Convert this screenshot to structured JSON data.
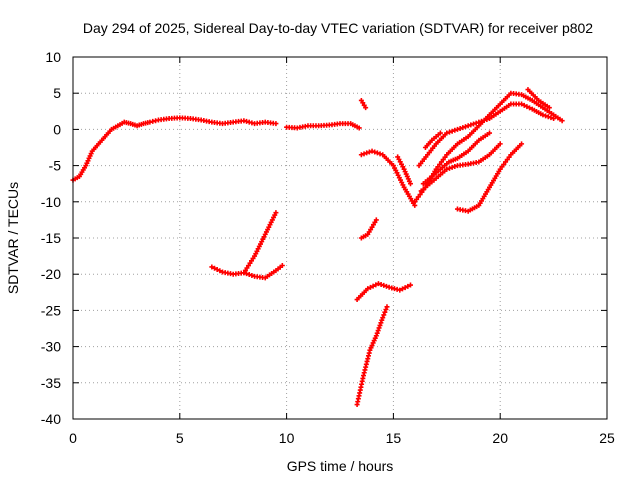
{
  "chart_data": {
    "type": "scatter",
    "title": "Day 294 of 2025, Sidereal Day-to-day VTEC variation (SDTVAR) for receiver p802",
    "xlabel": "GPS time / hours",
    "ylabel": "SDTVAR / TECUs",
    "xlim": [
      0,
      25
    ],
    "ylim": [
      -40,
      10
    ],
    "x_ticks": [
      0,
      5,
      10,
      15,
      20,
      25
    ],
    "y_ticks": [
      -40,
      -35,
      -30,
      -25,
      -20,
      -15,
      -10,
      -5,
      0,
      5,
      10
    ],
    "grid": true,
    "legend": "none",
    "point_color": "#ff0000",
    "series": [
      {
        "segments": [
          [
            [
              0.0,
              -7.0
            ],
            [
              0.3,
              -6.5
            ],
            [
              0.6,
              -5.0
            ],
            [
              0.9,
              -3.0
            ],
            [
              1.2,
              -2.0
            ],
            [
              1.5,
              -1.0
            ],
            [
              1.8,
              0.0
            ],
            [
              2.1,
              0.5
            ],
            [
              2.4,
              1.0
            ],
            [
              2.7,
              0.8
            ],
            [
              3.0,
              0.5
            ],
            [
              3.3,
              0.8
            ],
            [
              3.6,
              1.0
            ],
            [
              4.0,
              1.3
            ],
            [
              4.5,
              1.5
            ],
            [
              5.0,
              1.6
            ],
            [
              5.5,
              1.5
            ],
            [
              6.0,
              1.3
            ],
            [
              6.5,
              1.0
            ],
            [
              7.0,
              0.8
            ],
            [
              7.5,
              1.0
            ],
            [
              8.0,
              1.2
            ],
            [
              8.5,
              0.8
            ],
            [
              9.0,
              1.0
            ],
            [
              9.5,
              0.8
            ]
          ],
          [
            [
              10.0,
              0.3
            ],
            [
              10.5,
              0.2
            ],
            [
              11.0,
              0.5
            ],
            [
              11.5,
              0.5
            ],
            [
              12.0,
              0.6
            ],
            [
              12.5,
              0.8
            ],
            [
              13.0,
              0.8
            ],
            [
              13.4,
              0.2
            ]
          ],
          [
            [
              6.5,
              -19.0
            ],
            [
              7.0,
              -19.7
            ],
            [
              7.5,
              -20.0
            ],
            [
              8.0,
              -19.8
            ],
            [
              8.5,
              -20.3
            ],
            [
              9.0,
              -20.5
            ],
            [
              9.5,
              -19.5
            ],
            [
              9.8,
              -18.8
            ]
          ],
          [
            [
              8.0,
              -19.8
            ],
            [
              8.5,
              -17.5
            ],
            [
              9.0,
              -14.5
            ],
            [
              9.5,
              -11.5
            ]
          ],
          [
            [
              13.5,
              4.0
            ],
            [
              13.7,
              3.0
            ]
          ],
          [
            [
              13.5,
              -3.5
            ],
            [
              14.0,
              -3.0
            ],
            [
              14.5,
              -3.5
            ],
            [
              15.0,
              -5.0
            ],
            [
              15.5,
              -8.0
            ],
            [
              16.0,
              -10.5
            ]
          ],
          [
            [
              15.2,
              -3.8
            ],
            [
              15.5,
              -5.5
            ],
            [
              15.8,
              -7.5
            ]
          ],
          [
            [
              13.5,
              -15.0
            ],
            [
              13.8,
              -14.5
            ],
            [
              14.2,
              -12.5
            ]
          ],
          [
            [
              13.3,
              -23.5
            ],
            [
              13.8,
              -22.0
            ],
            [
              14.3,
              -21.3
            ],
            [
              14.8,
              -21.8
            ],
            [
              15.3,
              -22.2
            ],
            [
              15.8,
              -21.5
            ]
          ],
          [
            [
              13.3,
              -38.0
            ],
            [
              13.6,
              -34.0
            ],
            [
              13.9,
              -30.5
            ],
            [
              14.2,
              -28.5
            ],
            [
              14.5,
              -26.0
            ],
            [
              14.7,
              -24.5
            ]
          ],
          [
            [
              16.0,
              -10.0
            ],
            [
              16.5,
              -8.0
            ],
            [
              17.0,
              -5.5
            ],
            [
              17.5,
              -3.5
            ],
            [
              18.0,
              -2.0
            ],
            [
              18.5,
              -1.0
            ],
            [
              19.0,
              0.5
            ],
            [
              19.5,
              2.0
            ],
            [
              20.0,
              3.5
            ],
            [
              20.5,
              5.0
            ],
            [
              21.0,
              4.8
            ],
            [
              21.5,
              4.0
            ],
            [
              22.0,
              3.0
            ],
            [
              22.5,
              2.0
            ],
            [
              22.9,
              1.2
            ]
          ],
          [
            [
              16.2,
              -5.0
            ],
            [
              16.6,
              -3.5
            ],
            [
              17.0,
              -2.0
            ],
            [
              17.5,
              -0.5
            ],
            [
              18.0,
              0.0
            ],
            [
              18.5,
              0.5
            ],
            [
              19.0,
              1.0
            ],
            [
              19.5,
              1.5
            ],
            [
              20.0,
              2.5
            ],
            [
              20.5,
              3.5
            ],
            [
              21.0,
              3.5
            ],
            [
              21.5,
              2.8
            ],
            [
              22.0,
              2.0
            ],
            [
              22.5,
              1.5
            ]
          ],
          [
            [
              16.4,
              -7.5
            ],
            [
              16.8,
              -6.5
            ],
            [
              17.2,
              -5.5
            ],
            [
              17.6,
              -4.5
            ],
            [
              18.0,
              -4.0
            ],
            [
              18.5,
              -3.0
            ],
            [
              19.0,
              -1.5
            ],
            [
              19.5,
              -0.5
            ]
          ],
          [
            [
              16.3,
              -8.5
            ],
            [
              16.7,
              -7.5
            ],
            [
              17.1,
              -6.5
            ],
            [
              17.5,
              -5.5
            ],
            [
              18.0,
              -5.0
            ],
            [
              18.5,
              -4.8
            ],
            [
              19.0,
              -4.5
            ],
            [
              19.5,
              -3.5
            ],
            [
              20.0,
              -2.0
            ]
          ],
          [
            [
              16.5,
              -2.5
            ],
            [
              16.8,
              -1.5
            ],
            [
              17.2,
              -0.5
            ]
          ],
          [
            [
              18.0,
              -11.0
            ],
            [
              18.5,
              -11.3
            ],
            [
              19.0,
              -10.5
            ],
            [
              19.5,
              -8.0
            ],
            [
              20.0,
              -5.5
            ],
            [
              20.5,
              -3.5
            ],
            [
              21.0,
              -2.0
            ]
          ],
          [
            [
              21.3,
              5.5
            ],
            [
              21.8,
              4.0
            ],
            [
              22.3,
              3.0
            ]
          ]
        ]
      }
    ]
  }
}
